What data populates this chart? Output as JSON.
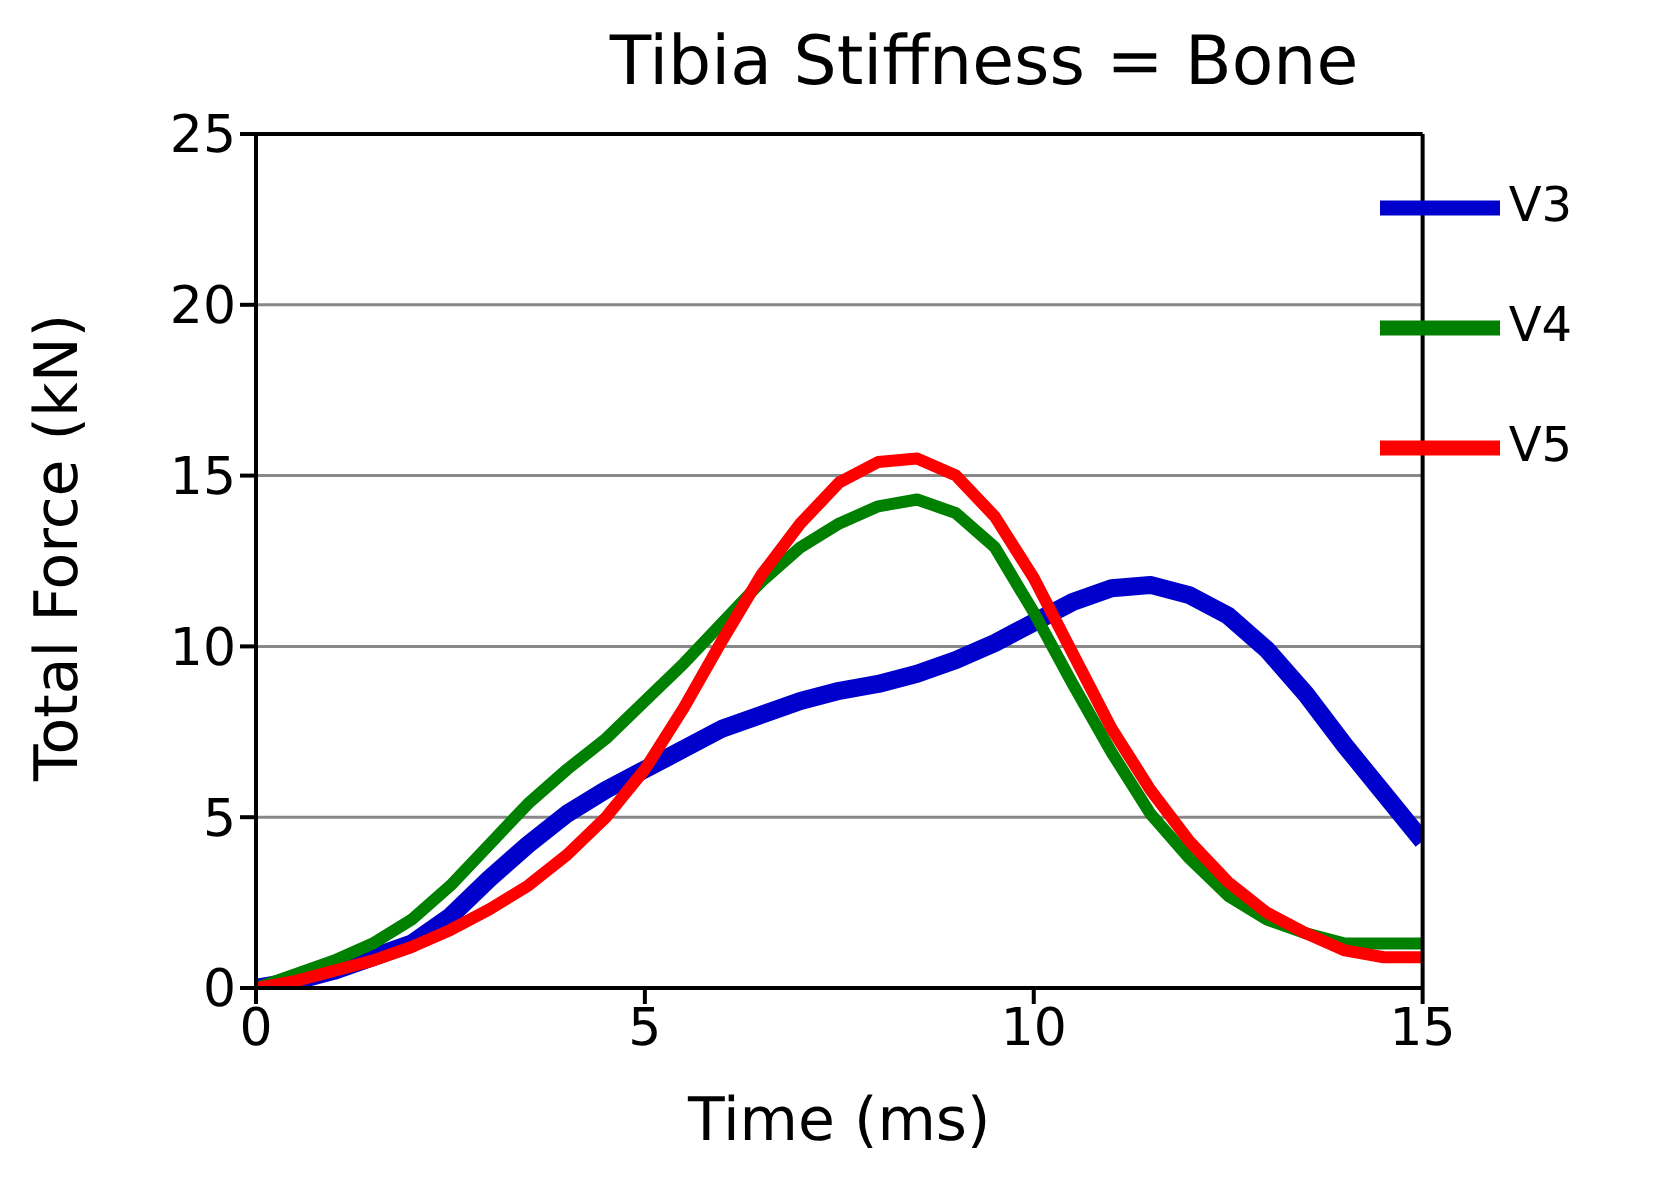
{
  "chart_data": {
    "type": "line",
    "title": "Tibia Stiffness = Bone",
    "xlabel": "Time (ms)",
    "ylabel": "Total Force (kN)",
    "x": [
      0,
      0.5,
      1,
      1.5,
      2,
      2.5,
      3,
      3.5,
      4,
      4.5,
      5,
      5.5,
      6,
      6.5,
      7,
      7.5,
      8,
      8.5,
      9,
      9.5,
      10,
      10.5,
      11,
      11.5,
      12,
      12.5,
      13,
      13.5,
      14,
      14.5,
      15
    ],
    "series": [
      {
        "name": "V3",
        "color": "#0000cc",
        "values": [
          0,
          0.2,
          0.5,
          0.9,
          1.3,
          2.1,
          3.2,
          4.2,
          5.1,
          5.8,
          6.4,
          7.0,
          7.6,
          8.0,
          8.4,
          8.7,
          8.9,
          9.2,
          9.6,
          10.1,
          10.7,
          11.3,
          11.7,
          11.8,
          11.5,
          10.9,
          9.9,
          8.6,
          7.1,
          5.7,
          4.3
        ]
      },
      {
        "name": "V4",
        "color": "#008000",
        "values": [
          0,
          0.4,
          0.8,
          1.3,
          2.0,
          3.0,
          4.2,
          5.4,
          6.4,
          7.3,
          8.4,
          9.5,
          10.7,
          11.9,
          12.9,
          13.6,
          14.1,
          14.3,
          13.9,
          12.9,
          11.0,
          8.9,
          6.9,
          5.1,
          3.8,
          2.7,
          2.0,
          1.6,
          1.3,
          1.3,
          1.3
        ]
      },
      {
        "name": "V5",
        "color": "#ff0000",
        "values": [
          0,
          0.2,
          0.5,
          0.8,
          1.2,
          1.7,
          2.3,
          3.0,
          3.9,
          5.0,
          6.4,
          8.2,
          10.2,
          12.1,
          13.6,
          14.8,
          15.4,
          15.5,
          15.0,
          13.8,
          12.0,
          9.8,
          7.6,
          5.8,
          4.3,
          3.1,
          2.2,
          1.6,
          1.1,
          0.9,
          0.9
        ]
      }
    ],
    "xlim": [
      0,
      15
    ],
    "xticks": [
      0,
      5,
      10,
      15
    ],
    "ylim": [
      0,
      25
    ],
    "yticks": [
      0,
      5,
      10,
      15,
      20,
      25
    ],
    "grid": "y",
    "legend": "top right",
    "marker": "none",
    "line_style": "solid"
  }
}
